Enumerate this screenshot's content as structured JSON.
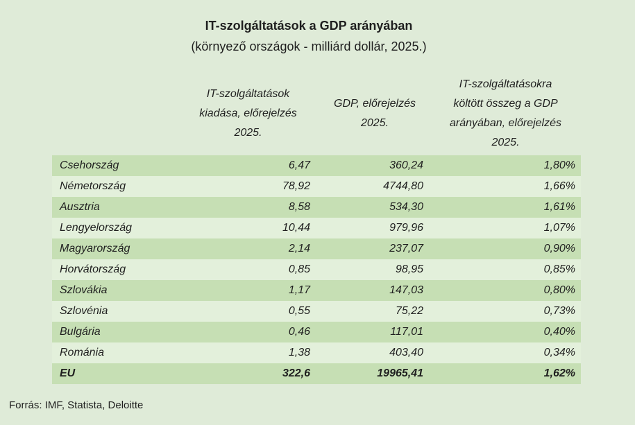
{
  "page": {
    "title": "IT-szolgáltatások a GDP arányában",
    "subtitle": "(környező országok - milliárd dollár, 2025.)",
    "source": "Forrás: IMF, Statista, Deloitte"
  },
  "colors": {
    "page-bg": "#dfebd8",
    "row-dark": "#c6dfb4",
    "row-light": "#e3f0db",
    "text": "#1f1f1f"
  },
  "table": {
    "column_headers": [
      "",
      "IT-szolgáltatások\nkiadása, előrejelzés\n2025.",
      "GDP, előrejelzés\n2025.",
      "IT-szolgáltatásokra\nköltött összeg a GDP\narányában, előrejelzés\n2025."
    ],
    "rows": [
      {
        "country": "Csehország",
        "it_spending": "6,47",
        "gdp": "360,24",
        "share": "1,80%",
        "emphasis": false
      },
      {
        "country": "Németország",
        "it_spending": "78,92",
        "gdp": "4744,80",
        "share": "1,66%",
        "emphasis": false
      },
      {
        "country": "Ausztria",
        "it_spending": "8,58",
        "gdp": "534,30",
        "share": "1,61%",
        "emphasis": false
      },
      {
        "country": "Lengyelország",
        "it_spending": "10,44",
        "gdp": "979,96",
        "share": "1,07%",
        "emphasis": false
      },
      {
        "country": "Magyarország",
        "it_spending": "2,14",
        "gdp": "237,07",
        "share": "0,90%",
        "emphasis": false
      },
      {
        "country": "Horvátország",
        "it_spending": "0,85",
        "gdp": "98,95",
        "share": "0,85%",
        "emphasis": false
      },
      {
        "country": "Szlovákia",
        "it_spending": "1,17",
        "gdp": "147,03",
        "share": "0,80%",
        "emphasis": false
      },
      {
        "country": "Szlovénia",
        "it_spending": "0,55",
        "gdp": "75,22",
        "share": "0,73%",
        "emphasis": false
      },
      {
        "country": "Bulgária",
        "it_spending": "0,46",
        "gdp": "117,01",
        "share": "0,40%",
        "emphasis": false
      },
      {
        "country": "Románia",
        "it_spending": "1,38",
        "gdp": "403,40",
        "share": "0,34%",
        "emphasis": false
      },
      {
        "country": "EU",
        "it_spending": "322,6",
        "gdp": "19965,41",
        "share": "1,62%",
        "emphasis": true
      }
    ]
  },
  "chart_data": {
    "type": "table",
    "title": "IT-szolgáltatások a GDP arányában",
    "subtitle": "(környező országok - milliárd dollár, 2025.)",
    "source": "Forrás: IMF, Statista, Deloitte",
    "unit": "milliárd dollár",
    "columns": [
      "",
      "IT-szolgáltatások kiadása, előrejelzés 2025.",
      "GDP, előrejelzés 2025.",
      "IT-szolgáltatásokra költött összeg a GDP arányában, előrejelzés 2025."
    ],
    "rows": [
      {
        "name": "Csehország",
        "it_spending_bn_usd": 6.47,
        "gdp_bn_usd": 360.24,
        "share_of_gdp_pct": 1.8
      },
      {
        "name": "Németország",
        "it_spending_bn_usd": 78.92,
        "gdp_bn_usd": 4744.8,
        "share_of_gdp_pct": 1.66
      },
      {
        "name": "Ausztria",
        "it_spending_bn_usd": 8.58,
        "gdp_bn_usd": 534.3,
        "share_of_gdp_pct": 1.61
      },
      {
        "name": "Lengyelország",
        "it_spending_bn_usd": 10.44,
        "gdp_bn_usd": 979.96,
        "share_of_gdp_pct": 1.07
      },
      {
        "name": "Magyarország",
        "it_spending_bn_usd": 2.14,
        "gdp_bn_usd": 237.07,
        "share_of_gdp_pct": 0.9
      },
      {
        "name": "Horvátország",
        "it_spending_bn_usd": 0.85,
        "gdp_bn_usd": 98.95,
        "share_of_gdp_pct": 0.85
      },
      {
        "name": "Szlovákia",
        "it_spending_bn_usd": 1.17,
        "gdp_bn_usd": 147.03,
        "share_of_gdp_pct": 0.8
      },
      {
        "name": "Szlovénia",
        "it_spending_bn_usd": 0.55,
        "gdp_bn_usd": 75.22,
        "share_of_gdp_pct": 0.73
      },
      {
        "name": "Bulgária",
        "it_spending_bn_usd": 0.46,
        "gdp_bn_usd": 117.01,
        "share_of_gdp_pct": 0.4
      },
      {
        "name": "Románia",
        "it_spending_bn_usd": 1.38,
        "gdp_bn_usd": 403.4,
        "share_of_gdp_pct": 0.34
      },
      {
        "name": "EU",
        "it_spending_bn_usd": 322.6,
        "gdp_bn_usd": 19965.41,
        "share_of_gdp_pct": 1.62
      }
    ]
  }
}
